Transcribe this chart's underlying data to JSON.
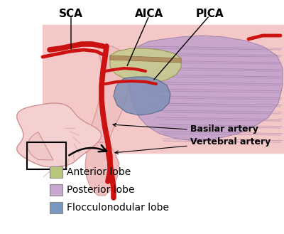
{
  "background_color": "#ffffff",
  "legend_items": [
    {
      "label": "Anterior lobe",
      "color": "#b8c878"
    },
    {
      "label": "Posterior lobe",
      "color": "#c8a8d0"
    },
    {
      "label": "Flocculonodular lobe",
      "color": "#7898c0"
    }
  ],
  "labels_top": [
    "SCA",
    "AICA",
    "PICA"
  ],
  "annotation_basilar": "Basilar artery",
  "annotation_vertebral": "Vertebral artery",
  "artery_color": "#cc1111",
  "pink_bg": "#f5c8c8",
  "pink_light": "#f8dada",
  "anterior_lobe_color": "#c8cc90",
  "posterior_lobe_color": "#c0a0cc",
  "flocculo_color": "#8090b8",
  "legend_fontsize": 10,
  "label_fontsize": 11
}
